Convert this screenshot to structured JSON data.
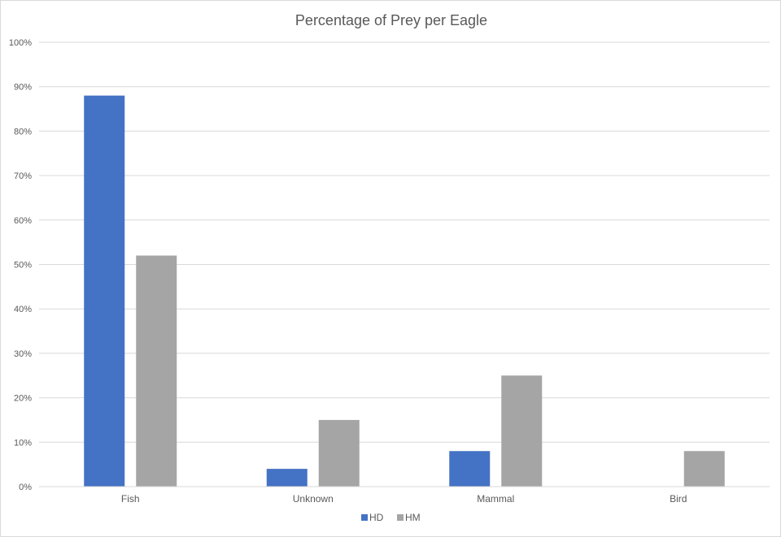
{
  "chart_data": {
    "type": "bar",
    "title": "Percentage of Prey per Eagle",
    "xlabel": "",
    "ylabel": "",
    "categories": [
      "Fish",
      "Unknown",
      "Mammal",
      "Bird"
    ],
    "series": [
      {
        "name": "HD",
        "color": "#4472C4",
        "values": [
          88,
          4,
          8,
          0
        ]
      },
      {
        "name": "HM",
        "color": "#A5A5A5",
        "values": [
          52,
          15,
          25,
          8
        ]
      }
    ],
    "ylim": [
      0,
      100
    ],
    "yticks": [
      {
        "value": 0,
        "label": "0%"
      },
      {
        "value": 10,
        "label": "10%"
      },
      {
        "value": 20,
        "label": "20%"
      },
      {
        "value": 30,
        "label": "30%"
      },
      {
        "value": 40,
        "label": "40%"
      },
      {
        "value": 50,
        "label": "50%"
      },
      {
        "value": 60,
        "label": "60%"
      },
      {
        "value": 70,
        "label": "70%"
      },
      {
        "value": 80,
        "label": "80%"
      },
      {
        "value": 90,
        "label": "90%"
      },
      {
        "value": 100,
        "label": "100%"
      }
    ],
    "grid": true,
    "legend_position": "bottom"
  }
}
